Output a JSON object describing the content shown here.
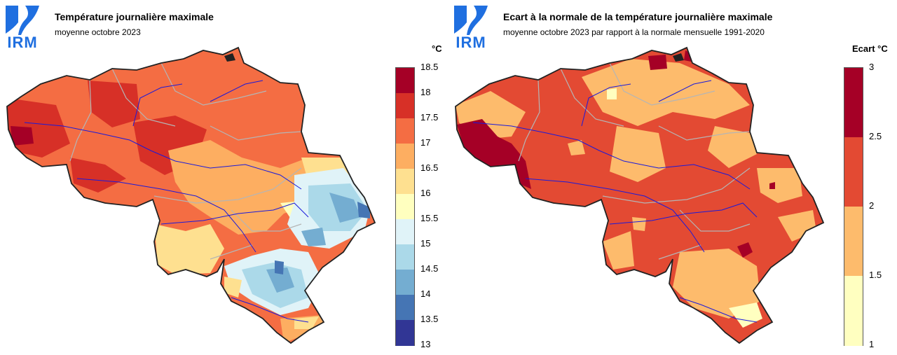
{
  "logo": {
    "text": "IRM",
    "color": "#1f6fe0"
  },
  "left_panel": {
    "title": "Température journalière maximale",
    "subtitle": "moyenne octobre 2023",
    "legend_unit": "°C",
    "legend_ticks": [
      "18.5",
      "18",
      "17.5",
      "17",
      "16.5",
      "16",
      "15.5",
      "15",
      "14.5",
      "14",
      "13.5",
      "13"
    ],
    "legend_colors": [
      "#a50026",
      "#d73027",
      "#f46d43",
      "#fdae61",
      "#fee090",
      "#ffffbf",
      "#e0f3f8",
      "#abd9e9",
      "#74add1",
      "#4575b4",
      "#313695"
    ]
  },
  "right_panel": {
    "title": "Ecart à la normale de la température journalière maximale",
    "subtitle": "moyenne octobre 2023 par rapport à la normale mensuelle 1991-2020",
    "legend_unit": "Ecart °C",
    "legend_ticks": [
      "3",
      "2.5",
      "2",
      "1.5",
      "1"
    ],
    "legend_colors": [
      "#a50026",
      "#e34a33",
      "#fdbb6c",
      "#ffffc0"
    ]
  }
}
